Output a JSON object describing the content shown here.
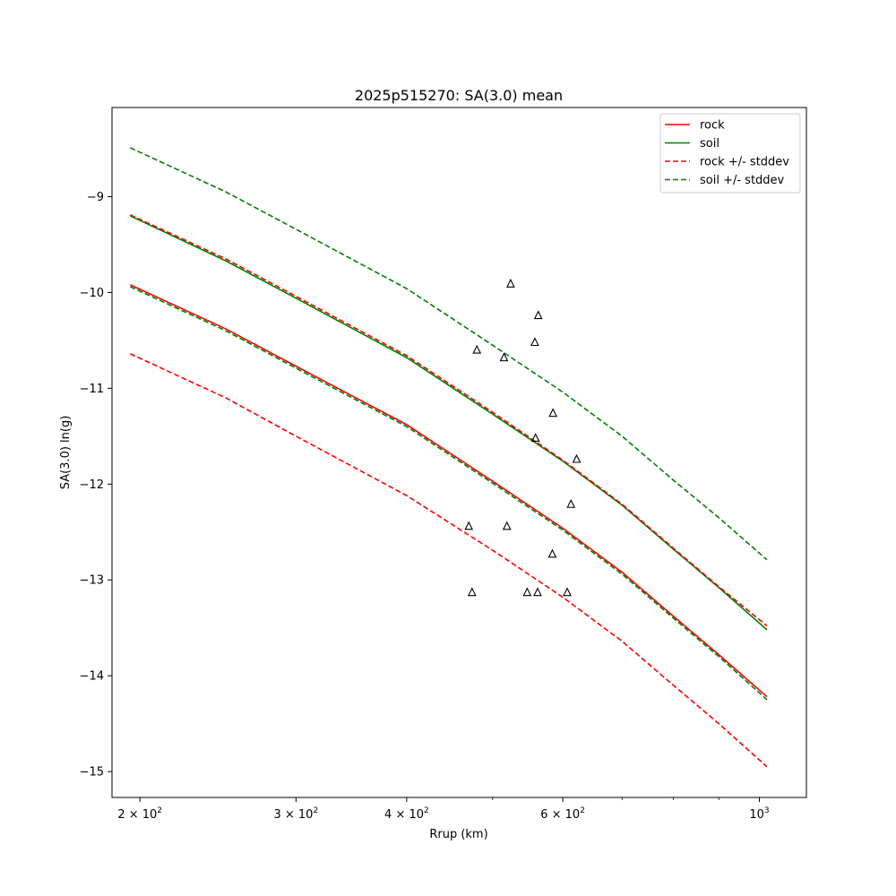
{
  "chart_data": {
    "type": "line",
    "title": "2025p515270: SA(3.0) mean",
    "xlabel": "Rrup (km)",
    "ylabel": "SA(3.0) ln(g)",
    "x_scale": "log",
    "xlim": [
      186,
      1130
    ],
    "ylim": [
      -15.27,
      -8.07
    ],
    "x_ticks": [
      {
        "value": 200,
        "label_base": "2 × 10",
        "label_exp": "2"
      },
      {
        "value": 300,
        "label_base": "3 × 10",
        "label_exp": "2"
      },
      {
        "value": 400,
        "label_base": "4 × 10",
        "label_exp": "2"
      },
      {
        "value": 600,
        "label_base": "6 × 10",
        "label_exp": "2"
      },
      {
        "value": 1000,
        "label_base": "10",
        "label_exp": "3"
      }
    ],
    "x_minor_ticks": [
      500,
      700,
      800,
      900
    ],
    "y_ticks": [
      {
        "value": -9,
        "label": "−9"
      },
      {
        "value": -10,
        "label": "−10"
      },
      {
        "value": -11,
        "label": "−11"
      },
      {
        "value": -12,
        "label": "−12"
      },
      {
        "value": -13,
        "label": "−13"
      },
      {
        "value": -14,
        "label": "−14"
      },
      {
        "value": -15,
        "label": "−15"
      }
    ],
    "grid": false,
    "legend_position": "top-right",
    "legend": [
      {
        "label": "rock",
        "color": "#ff0000",
        "dashed": false
      },
      {
        "label": "soil",
        "color": "#008000",
        "dashed": false
      },
      {
        "label": "rock +/- stddev",
        "color": "#ff0000",
        "dashed": true
      },
      {
        "label": "soil +/- stddev",
        "color": "#008000",
        "dashed": true
      }
    ],
    "series": [
      {
        "name": "rock",
        "color": "#ff0000",
        "dashed": false,
        "x": [
          195,
          250,
          300,
          400,
          500,
          600,
          700,
          800,
          900,
          1020
        ],
        "y": [
          -9.92,
          -10.38,
          -10.77,
          -11.38,
          -11.97,
          -12.46,
          -12.92,
          -13.38,
          -13.78,
          -14.22
        ]
      },
      {
        "name": "soil",
        "color": "#008000",
        "dashed": false,
        "x": [
          195,
          250,
          300,
          400,
          500,
          600,
          700,
          800,
          900,
          1020
        ],
        "y": [
          -9.2,
          -9.67,
          -10.06,
          -10.68,
          -11.27,
          -11.76,
          -12.22,
          -12.68,
          -13.08,
          -13.52
        ]
      },
      {
        "name": "rock +/- stddev",
        "color": "#ff0000",
        "dashed": true,
        "x": [
          195,
          250,
          300,
          400,
          500,
          600,
          700,
          800,
          900,
          1020
        ],
        "y": [
          -9.19,
          -9.65,
          -10.04,
          -10.66,
          -11.25,
          -11.75,
          -12.21,
          -12.67,
          -13.07,
          -13.48
        ]
      },
      {
        "name": "rock +/- stddev",
        "color": "#ff0000",
        "dashed": true,
        "x": [
          195,
          250,
          300,
          400,
          500,
          600,
          700,
          800,
          900,
          1020
        ],
        "y": [
          -10.64,
          -11.1,
          -11.5,
          -12.12,
          -12.69,
          -13.18,
          -13.64,
          -14.1,
          -14.5,
          -14.95
        ]
      },
      {
        "name": "soil +/- stddev",
        "color": "#008000",
        "dashed": true,
        "x": [
          195,
          250,
          300,
          400,
          500,
          600,
          700,
          800,
          900,
          1020
        ],
        "y": [
          -8.49,
          -8.95,
          -9.34,
          -9.96,
          -10.55,
          -11.04,
          -11.5,
          -11.96,
          -12.35,
          -12.79
        ]
      },
      {
        "name": "soil +/- stddev",
        "color": "#008000",
        "dashed": true,
        "x": [
          195,
          250,
          300,
          400,
          500,
          600,
          700,
          800,
          900,
          1020
        ],
        "y": [
          -9.94,
          -10.4,
          -10.79,
          -11.4,
          -11.99,
          -12.48,
          -12.94,
          -13.4,
          -13.8,
          -14.25
        ]
      }
    ],
    "observations": {
      "marker": "triangle",
      "color": "#000000",
      "x": [
        524,
        563,
        480,
        558,
        515,
        585,
        559,
        622,
        613,
        470,
        519,
        584,
        474,
        547,
        562,
        607
      ],
      "y": [
        -9.91,
        -10.24,
        -10.6,
        -10.52,
        -10.68,
        -11.26,
        -11.52,
        -11.74,
        -12.21,
        -12.44,
        -12.44,
        -12.73,
        -13.13,
        -13.13,
        -13.13,
        -13.13
      ]
    }
  }
}
